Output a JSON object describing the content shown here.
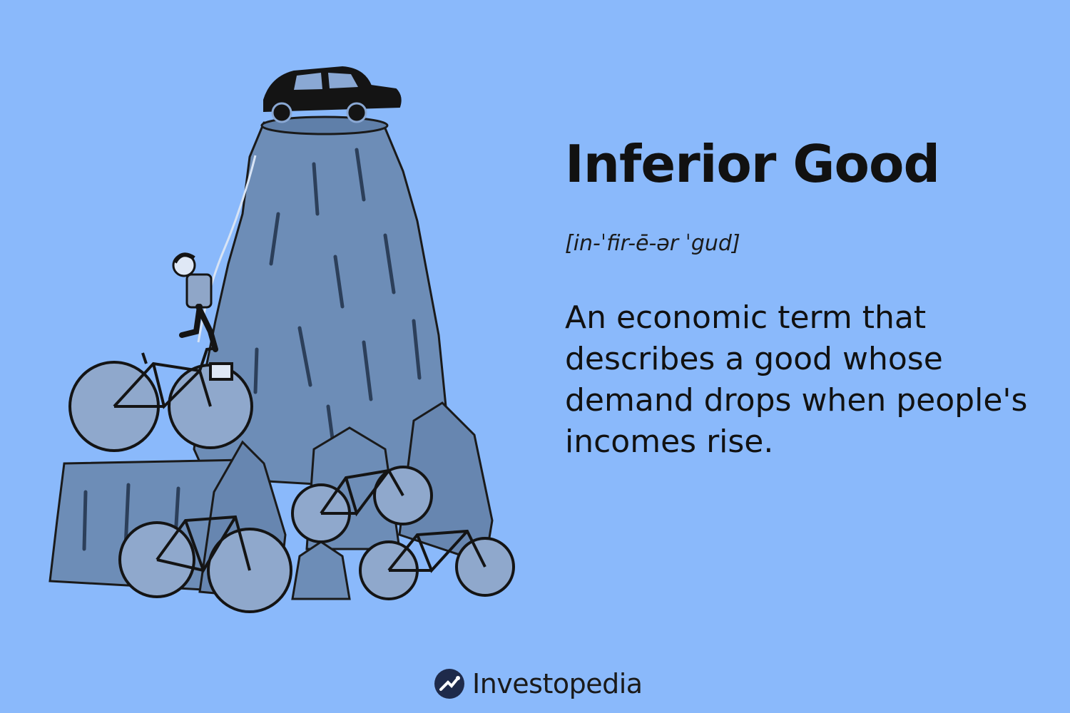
{
  "title": "Inferior Good",
  "pronunciation": "[in-ˈfir-ē-ər ˈgud]",
  "definition": "An economic term that describes a good whose demand drops when people's incomes rise.",
  "brand": {
    "name": "Investopedia",
    "logo_icon": "investopedia-logo-icon"
  },
  "colors": {
    "background": "#8ab9fb",
    "rock": "#6d8db7",
    "rock_shadow": "#4f6d95",
    "ink": "#141414"
  }
}
